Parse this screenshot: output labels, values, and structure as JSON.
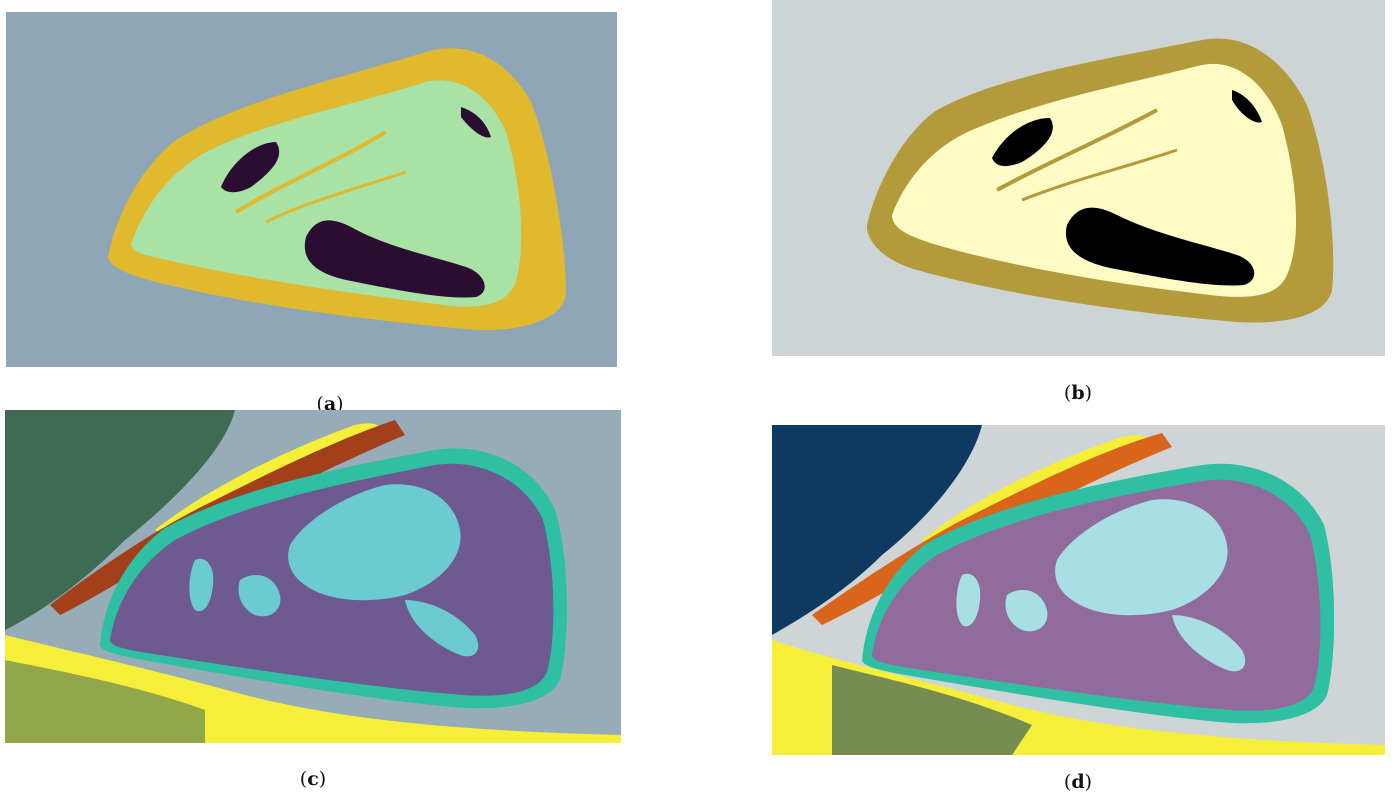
{
  "figure": {
    "panels": [
      {
        "id": "a",
        "caption_open": "(",
        "caption_letter": "a",
        "caption_close": ")"
      },
      {
        "id": "b",
        "caption_open": "(",
        "caption_letter": "b",
        "caption_close": ")"
      },
      {
        "id": "c",
        "caption_open": "(",
        "caption_letter": "c",
        "caption_close": ")"
      },
      {
        "id": "d",
        "caption_open": "(",
        "caption_letter": "d",
        "caption_close": ")"
      }
    ],
    "colors": {
      "a": {
        "background": "#8fa6b7",
        "rim": "#e0b92e",
        "inner": "#a9e2a5",
        "dark": "#2b0d32"
      },
      "b": {
        "background": "#cdd4d6",
        "rim": "#b39a3a",
        "inner": "#fffbc4",
        "dark": "#000000"
      },
      "c": {
        "background": "#96acb6",
        "lagoon": "#6e5a91",
        "islands": "#6ccbd1",
        "rim": "#2fbfa3",
        "sand": "#f6ef3a",
        "reef_streak": "#a2401c",
        "deep": "#3f6b55"
      },
      "d": {
        "background": "#cfd5d7",
        "lagoon": "#916b9c",
        "islands": "#a8dfe4",
        "rim": "#2fbfa3",
        "sand": "#f6ef3a",
        "reef_streak": "#d8651a",
        "deep": "#0e3a62"
      }
    }
  }
}
